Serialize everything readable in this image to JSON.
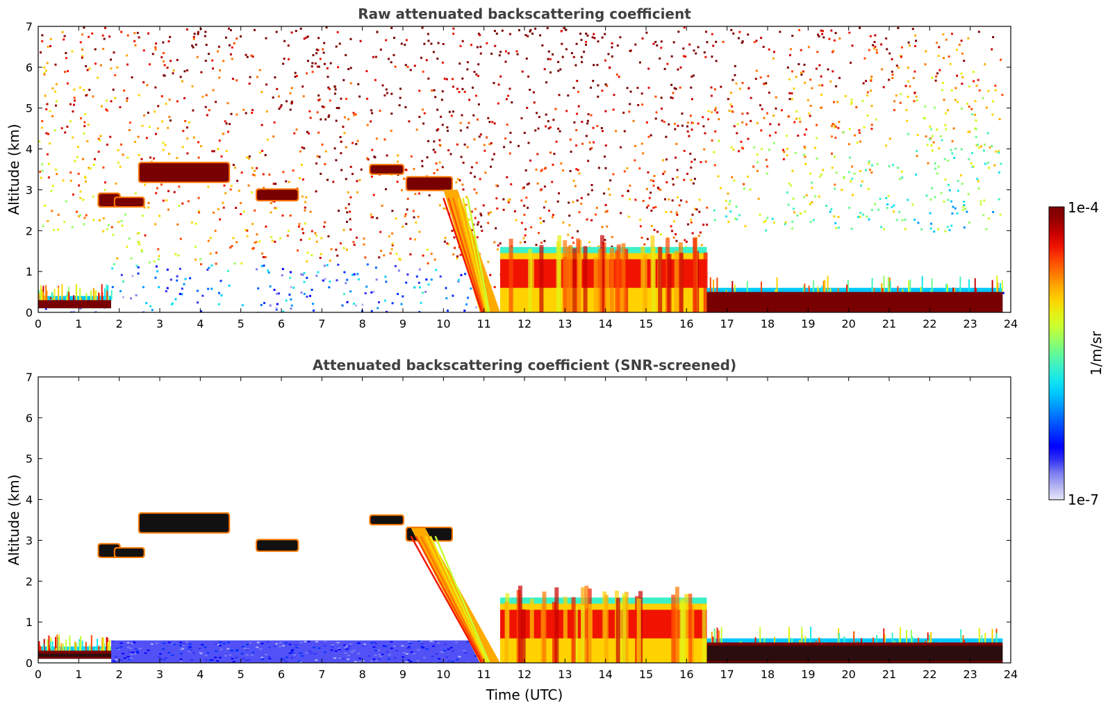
{
  "figure": {
    "colorbar": {
      "max_label": "1e-4",
      "min_label": "1e-7",
      "unit_label": "1/m/sr",
      "colors": [
        "#e8e8f8",
        "#b4b4f2",
        "#7d7df0",
        "#3232f4",
        "#0000ff",
        "#0032ff",
        "#0064ff",
        "#0096ff",
        "#00c8ff",
        "#14e6ee",
        "#3cf0c8",
        "#64fa96",
        "#96ff64",
        "#c8ff32",
        "#e6f014",
        "#ffd200",
        "#ffaa00",
        "#ff7800",
        "#ff4600",
        "#f01400",
        "#c80000",
        "#960000",
        "#780000"
      ]
    }
  },
  "chart_data": [
    {
      "type": "heatmap",
      "title": "Raw attenuated backscattering coefficient",
      "xlabel": "",
      "ylabel": "Altitude (km)",
      "xlim": [
        0,
        24
      ],
      "ylim": [
        0,
        7
      ],
      "xticks": [
        "0",
        "1",
        "2",
        "3",
        "4",
        "5",
        "6",
        "7",
        "8",
        "9",
        "10",
        "11",
        "12",
        "13",
        "14",
        "15",
        "16",
        "17",
        "18",
        "19",
        "20",
        "21",
        "22",
        "23",
        "24"
      ],
      "yticks": [
        "0",
        "1",
        "2",
        "3",
        "4",
        "5",
        "6",
        "7"
      ],
      "color_scale": "log",
      "clim": [
        1e-07,
        0.0001
      ],
      "units": "1/m/sr",
      "features": [
        {
          "kind": "boundary_layer",
          "x": [
            0,
            1.8
          ],
          "y": [
            0.1,
            0.3
          ],
          "level": "1e-4"
        },
        {
          "kind": "cloud",
          "x": [
            1.5,
            2.0
          ],
          "y": [
            2.6,
            2.9
          ],
          "level": "1e-4"
        },
        {
          "kind": "cloud",
          "x": [
            1.9,
            2.6
          ],
          "y": [
            2.6,
            2.8
          ],
          "level": "1e-4"
        },
        {
          "kind": "cloud",
          "x": [
            2.5,
            4.7
          ],
          "y": [
            3.2,
            3.65
          ],
          "level": "1e-4"
        },
        {
          "kind": "cloud",
          "x": [
            5.4,
            6.4
          ],
          "y": [
            2.75,
            3.0
          ],
          "level": "1e-4"
        },
        {
          "kind": "cloud",
          "x": [
            8.2,
            9.0
          ],
          "y": [
            3.4,
            3.6
          ],
          "level": "1e-4"
        },
        {
          "kind": "cloud",
          "x": [
            9.1,
            10.2
          ],
          "y": [
            3.0,
            3.3
          ],
          "level": "1e-4"
        },
        {
          "kind": "precipitating_layer",
          "x": [
            10.0,
            11.4
          ],
          "y": [
            0,
            3.0
          ],
          "level": "5e-6 to 1e-4"
        },
        {
          "kind": "cloud_deck",
          "x": [
            11.4,
            16.5
          ],
          "y": [
            0,
            1.9
          ],
          "level": "5e-6 to 1e-4"
        },
        {
          "kind": "boundary_layer",
          "x": [
            16.5,
            23.8
          ],
          "y": [
            0,
            0.5
          ],
          "level": "1e-4"
        }
      ]
    },
    {
      "type": "heatmap",
      "title": "Attenuated backscattering coefficient (SNR-screened)",
      "xlabel": "Time (UTC)",
      "ylabel": "Altitude (km)",
      "xlim": [
        0,
        24
      ],
      "ylim": [
        0,
        7
      ],
      "xticks": [
        "0",
        "1",
        "2",
        "3",
        "4",
        "5",
        "6",
        "7",
        "8",
        "9",
        "10",
        "11",
        "12",
        "13",
        "14",
        "15",
        "16",
        "17",
        "18",
        "19",
        "20",
        "21",
        "22",
        "23",
        "24"
      ],
      "yticks": [
        "0",
        "1",
        "2",
        "3",
        "4",
        "5",
        "6",
        "7"
      ],
      "color_scale": "log",
      "clim": [
        1e-07,
        0.0001
      ],
      "units": "1/m/sr",
      "features": [
        {
          "kind": "boundary_layer",
          "x": [
            0,
            1.8
          ],
          "y": [
            0.1,
            0.3
          ],
          "level": "1e-4"
        },
        {
          "kind": "aerosol_layer",
          "x": [
            1.8,
            11.0
          ],
          "y": [
            0,
            0.55
          ],
          "level": "5e-7"
        },
        {
          "kind": "cloud",
          "x": [
            1.5,
            2.0
          ],
          "y": [
            2.6,
            2.9
          ],
          "level": "1e-4"
        },
        {
          "kind": "cloud",
          "x": [
            1.9,
            2.6
          ],
          "y": [
            2.6,
            2.8
          ],
          "level": "1e-4"
        },
        {
          "kind": "cloud",
          "x": [
            2.5,
            4.7
          ],
          "y": [
            3.2,
            3.65
          ],
          "level": "1e-4"
        },
        {
          "kind": "cloud",
          "x": [
            5.4,
            6.4
          ],
          "y": [
            2.75,
            3.0
          ],
          "level": "1e-4"
        },
        {
          "kind": "cloud",
          "x": [
            8.2,
            9.0
          ],
          "y": [
            3.4,
            3.6
          ],
          "level": "1e-4"
        },
        {
          "kind": "cloud",
          "x": [
            9.1,
            10.2
          ],
          "y": [
            3.0,
            3.3
          ],
          "level": "1e-4"
        },
        {
          "kind": "precipitating_layer",
          "x": [
            9.2,
            11.4
          ],
          "y": [
            0,
            3.3
          ],
          "level": "5e-6 to 1e-4"
        },
        {
          "kind": "cloud_deck",
          "x": [
            11.4,
            16.5
          ],
          "y": [
            0,
            1.9
          ],
          "level": "5e-6 to 1e-4"
        },
        {
          "kind": "boundary_layer",
          "x": [
            16.5,
            23.8
          ],
          "y": [
            0,
            0.5
          ],
          "level": "1e-4"
        }
      ]
    }
  ]
}
